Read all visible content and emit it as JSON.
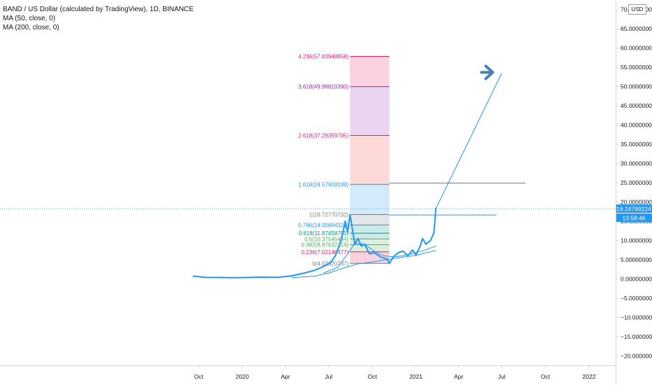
{
  "legend": {
    "symbol": "BAND / US Dollar (calculated by TradingView), 1D, BINANCE",
    "ma50": "MA (50, close, 0)",
    "ma200": "MA (200, close, 0)"
  },
  "currency": "USD",
  "colors": {
    "price": "#2196f3",
    "ma50": "#2196f3",
    "ma200": "#2196f3",
    "last_price_tag": "#2196f3",
    "fib_red": "#e91e63",
    "fib_purple": "#9c27b0",
    "fib_blue": "#2196f3",
    "fib_teal": "#009688",
    "fib_green": "#4caf50",
    "fib_gray": "#787b86"
  },
  "chart_data": {
    "type": "line",
    "x_tick_labels": [
      "Oct",
      "2020",
      "Apr",
      "Jul",
      "Oct",
      "2021",
      "Apr",
      "Jul",
      "Oct",
      "2022"
    ],
    "y_tick_labels": [
      "70.00000000",
      "65.00000000",
      "60.00000000",
      "55.00000000",
      "50.00000000",
      "45.00000000",
      "40.00000000",
      "35.00000000",
      "30.00000000",
      "25.00000000",
      "20.00000000",
      "15.00000000",
      "10.00000000",
      "5.00000000",
      "0.00000000",
      "−5.00000000",
      "−10.00000000",
      "−15.00000000",
      "−20.00000000"
    ],
    "ylim": [
      -22.5,
      72.5
    ],
    "y_ticks": [
      70,
      65,
      60,
      55,
      50,
      45,
      40,
      35,
      30,
      25,
      20,
      15,
      10,
      5,
      0,
      -5,
      -10,
      -15,
      -20
    ],
    "x_ticks": [
      "2019-10-01",
      "2020-01-01",
      "2020-04-01",
      "2020-07-01",
      "2020-10-01",
      "2021-01-01",
      "2021-04-01",
      "2021-07-01",
      "2021-10-01",
      "2022-01-01"
    ],
    "last_price": "18.24799224",
    "countdown": "13:58:46",
    "series": [
      {
        "values_xy": [
          [
            "2019-09-20",
            0.7
          ],
          [
            "2019-10-15",
            0.4
          ],
          [
            "2019-11-15",
            0.35
          ],
          [
            "2019-12-15",
            0.3
          ],
          [
            "2020-01-15",
            0.35
          ],
          [
            "2020-02-15",
            0.45
          ],
          [
            "2020-03-15",
            0.4
          ],
          [
            "2020-04-15",
            0.8
          ],
          [
            "2020-05-10",
            1.5
          ],
          [
            "2020-06-01",
            2.2
          ],
          [
            "2020-06-20",
            3.2
          ],
          [
            "2020-07-05",
            4.2
          ],
          [
            "2020-07-15",
            6.0
          ],
          [
            "2020-07-25",
            9.0
          ],
          [
            "2020-08-01",
            12.5
          ],
          [
            "2020-08-05",
            15.0
          ],
          [
            "2020-08-10",
            12.0
          ],
          [
            "2020-08-15",
            16.7
          ],
          [
            "2020-08-20",
            13.0
          ],
          [
            "2020-08-25",
            9.0
          ],
          [
            "2020-09-01",
            10.5
          ],
          [
            "2020-09-08",
            8.5
          ],
          [
            "2020-09-15",
            9.0
          ],
          [
            "2020-09-25",
            6.5
          ],
          [
            "2020-10-05",
            6.8
          ],
          [
            "2020-10-20",
            5.6
          ],
          [
            "2020-11-01",
            5.2
          ],
          [
            "2020-11-06",
            4.0
          ],
          [
            "2020-11-15",
            5.8
          ],
          [
            "2020-11-25",
            6.8
          ],
          [
            "2020-12-05",
            7.2
          ],
          [
            "2020-12-15",
            6.0
          ],
          [
            "2020-12-25",
            7.5
          ],
          [
            "2021-01-01",
            6.2
          ],
          [
            "2021-01-10",
            8.5
          ],
          [
            "2021-01-15",
            10.5
          ],
          [
            "2021-01-22",
            9.0
          ],
          [
            "2021-02-01",
            10.0
          ],
          [
            "2021-02-08",
            12.0
          ],
          [
            "2021-02-12",
            18.25
          ]
        ]
      },
      {
        "values_xy": [
          [
            "2020-06-20",
            1.5
          ],
          [
            "2020-07-20",
            3.0
          ],
          [
            "2020-08-10",
            6.5
          ],
          [
            "2020-08-25",
            9.2
          ],
          [
            "2020-09-15",
            9.0
          ],
          [
            "2020-10-05",
            7.2
          ],
          [
            "2020-10-25",
            6.0
          ],
          [
            "2020-11-15",
            5.7
          ],
          [
            "2020-12-05",
            6.0
          ],
          [
            "2020-12-25",
            6.6
          ],
          [
            "2021-01-15",
            7.3
          ],
          [
            "2021-02-12",
            8.5
          ]
        ]
      },
      {
        "values_xy": [
          [
            "2020-04-15",
            0.3
          ],
          [
            "2020-06-01",
            0.7
          ],
          [
            "2020-07-01",
            1.5
          ],
          [
            "2020-08-01",
            2.8
          ],
          [
            "2020-09-01",
            3.9
          ],
          [
            "2020-10-01",
            4.4
          ],
          [
            "2020-11-01",
            5.0
          ],
          [
            "2020-12-01",
            5.6
          ],
          [
            "2021-01-01",
            6.1
          ],
          [
            "2021-02-12",
            7.4
          ]
        ]
      }
    ],
    "fibonacci": {
      "x_start": "2020-08-15",
      "x_end": "2020-11-06",
      "levels": [
        {
          "label": "0(4.02320737)",
          "ratio": 0,
          "value": 4.02320737,
          "color": "#787b86"
        },
        {
          "label": "0.236(7.02146477)",
          "ratio": 0.236,
          "value": 7.02146477,
          "color": "#e91e63"
        },
        {
          "label": "0.382(8.87632214)",
          "ratio": 0.382,
          "value": 8.87632214,
          "color": "#4caf50"
        },
        {
          "label": "0.5(10.37545484)",
          "ratio": 0.5,
          "value": 10.37545484,
          "color": "#4caf50"
        },
        {
          "label": "0.618(11.87458755)",
          "ratio": 0.618,
          "value": 11.87458755,
          "color": "#009688"
        },
        {
          "label": "0.786(14.00894321)",
          "ratio": 0.786,
          "value": 14.00894321,
          "color": "#2196f3"
        },
        {
          "label": "1(16.72770732)",
          "ratio": 1,
          "value": 16.72770732,
          "color": "#787b86"
        },
        {
          "label": "1.618(24.57909199)",
          "ratio": 1.618,
          "value": 24.57909199,
          "color": "#2196f3"
        },
        {
          "label": "2.618(37.28359795)",
          "ratio": 2.618,
          "value": 37.28359795,
          "color": "#e91e63"
        },
        {
          "label": "3.618(49.98810390)",
          "ratio": 3.618,
          "value": 49.9881039,
          "color": "#9c27b0"
        },
        {
          "label": "4.236(57.83948858)",
          "ratio": 4.236,
          "value": 57.83948858,
          "color": "#e91e63"
        }
      ],
      "bands": [
        {
          "from": 0,
          "to": 0.236,
          "color": "#e91e63"
        },
        {
          "from": 0.236,
          "to": 0.382,
          "color": "#4caf50"
        },
        {
          "from": 0.382,
          "to": 0.5,
          "color": "#4caf50"
        },
        {
          "from": 0.5,
          "to": 0.618,
          "color": "#009688"
        },
        {
          "from": 0.618,
          "to": 0.786,
          "color": "#009688"
        },
        {
          "from": 0.786,
          "to": 1,
          "color": "#787b86"
        },
        {
          "from": 1,
          "to": 1.618,
          "color": "#2196f3"
        },
        {
          "from": 1.618,
          "to": 2.618,
          "color": "#f44336"
        },
        {
          "from": 2.618,
          "to": 3.618,
          "color": "#9c27b0"
        },
        {
          "from": 3.618,
          "to": 4.236,
          "color": "#e91e63"
        }
      ]
    },
    "drawings": {
      "h_lines": [
        {
          "y": 24.9,
          "from": "2020-11-06",
          "to": "2021-08-20"
        },
        {
          "y": 16.6,
          "from": "2020-11-06",
          "to": "2021-06-20"
        }
      ],
      "projection": {
        "from": [
          "2021-02-12",
          18.25
        ],
        "to": [
          "2021-07-01",
          53.5
        ]
      },
      "arrow_at": [
        "2021-06-12",
        53.5
      ]
    }
  }
}
